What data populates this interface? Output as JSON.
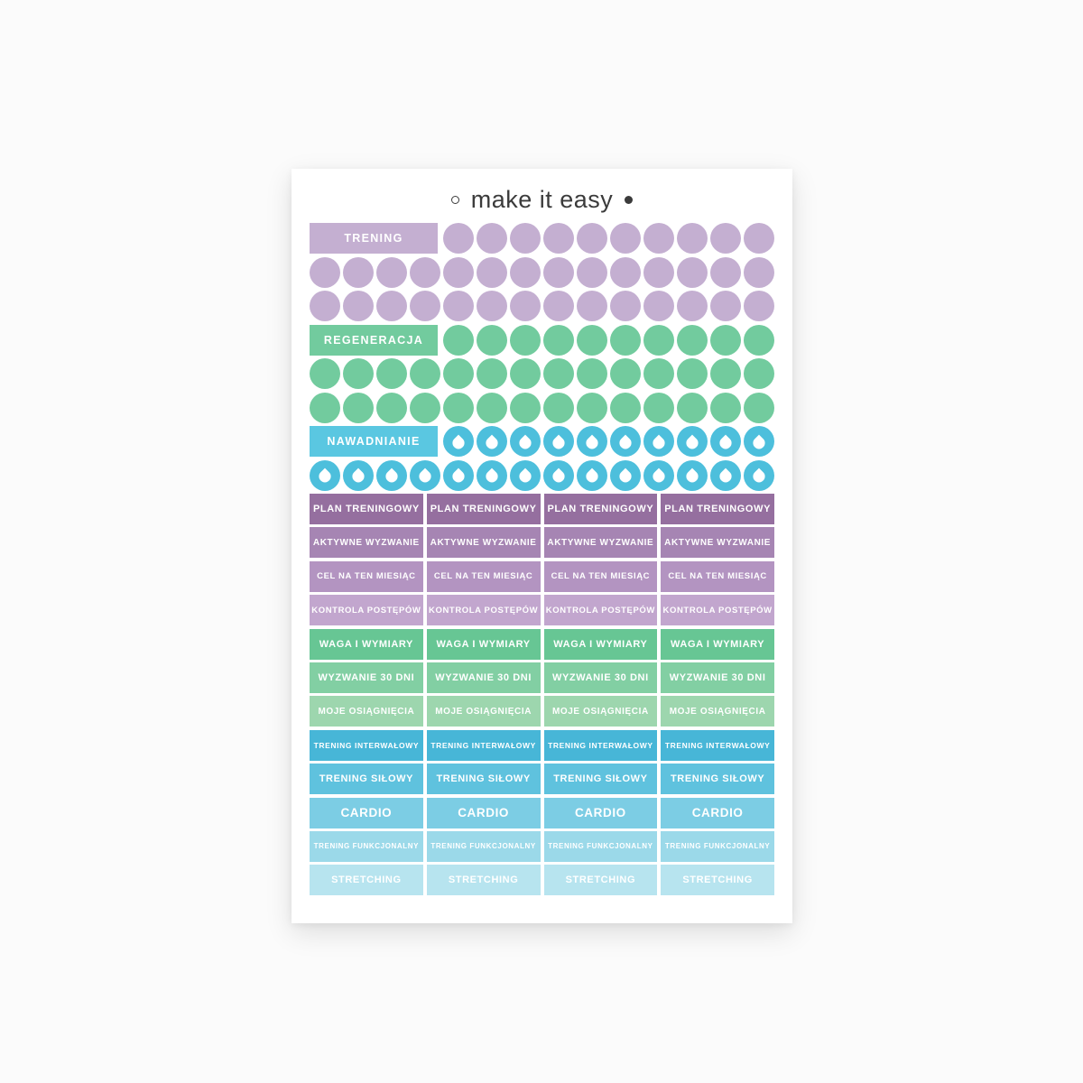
{
  "logo": {
    "prefix_icon": "small-ring-icon",
    "text": "make it easy",
    "suffix_icon": "filled-dot-icon",
    "text_color": "#3b3b3b"
  },
  "colors": {
    "page_background": "#fbfbfb",
    "sheet_background": "#ffffff",
    "sticker_text": "#ffffff"
  },
  "sticker_sections": [
    {
      "label": "TRENING",
      "icon": "circle-sticker",
      "color": "#c4afd1",
      "rows": [
        10,
        14,
        14
      ]
    },
    {
      "label": "REGENERACJA",
      "icon": "circle-sticker",
      "color": "#72cb9e",
      "rows": [
        10,
        14,
        14
      ]
    },
    {
      "label": "NAWADNIANIE",
      "icon": "water-drop-sticker",
      "color": "#5ac7e1",
      "drop_color": "#4dbfdc",
      "rows": [
        10,
        14
      ]
    }
  ],
  "label_grid": {
    "columns": 4,
    "rows": [
      {
        "label": "PLAN TRENINGOWY",
        "color": "#956f9f"
      },
      {
        "label": "AKTYWNE WYZWANIE",
        "color": "#a685b3"
      },
      {
        "label": "CEL NA TEN MIESIĄC",
        "color": "#b394c1"
      },
      {
        "label": "KONTROLA POSTĘPÓW",
        "color": "#c2a6ce"
      },
      {
        "label": "WAGA I WYMIARY",
        "color": "#67c694"
      },
      {
        "label": "WYZWANIE 30 DNI",
        "color": "#82cfa3"
      },
      {
        "label": "MOJE OSIĄGNIĘCIA",
        "color": "#9dd6ae"
      },
      {
        "label": "TRENING INTERWAŁOWY",
        "color": "#47b6d7"
      },
      {
        "label": "TRENING SIŁOWY",
        "color": "#5fc2de"
      },
      {
        "label": "CARDIO",
        "color": "#7ccde4"
      },
      {
        "label": "TRENING FUNKCJONALNY",
        "color": "#9bd9e9"
      },
      {
        "label": "STRETCHING",
        "color": "#b7e4ef"
      }
    ]
  }
}
